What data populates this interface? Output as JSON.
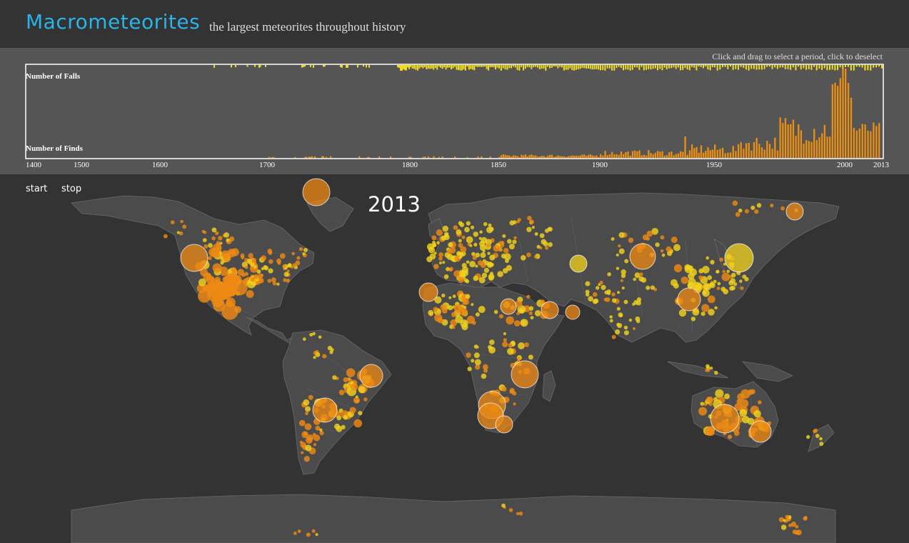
{
  "header": {
    "title": "Macrometeorites",
    "subtitle": "the largest meteorites throughout history"
  },
  "timeline": {
    "instructions": "Click and drag to select a period, click to deselect",
    "falls_label": "Number of Falls",
    "finds_label": "Number of Finds",
    "tick_labels": [
      "1400",
      "1500",
      "1600",
      "1700",
      "1800",
      "1850",
      "1900",
      "1950",
      "2000",
      "2013"
    ]
  },
  "controls": {
    "start_label": "start",
    "stop_label": "stop"
  },
  "map": {
    "current_year": "2013"
  },
  "colors": {
    "title": "#2ab4e8",
    "falls": "#f2dd1a",
    "finds": "#ec8f11",
    "fall_dot": "#f2d21c",
    "find_dot": "#ee8a14",
    "land": "#4b4b4b",
    "border": "#6a6a6a"
  }
}
